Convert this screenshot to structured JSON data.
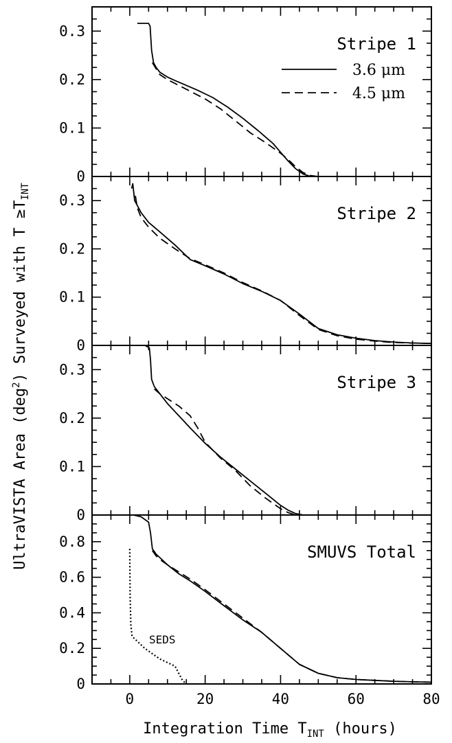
{
  "chart_data": [
    {
      "type": "line",
      "title": "Stripe 1",
      "xlim": [
        -10,
        80
      ],
      "ylim": [
        0,
        0.35
      ],
      "yticks": [
        0,
        0.1,
        0.2,
        0.3
      ],
      "yticklabels": [
        "0",
        "0.1",
        "0.2",
        "0.3"
      ],
      "legend": {
        "placement": "top-right",
        "entries": [
          {
            "label": "3.6 μm",
            "style": "solid"
          },
          {
            "label": "4.5 μm",
            "style": "dashed"
          }
        ]
      },
      "series": [
        {
          "name": "3.6 μm",
          "style": "solid",
          "x": [
            2,
            5,
            5.4,
            5.8,
            6.3,
            7,
            8,
            10,
            12,
            15,
            18,
            22,
            26,
            30,
            34,
            38,
            40,
            42,
            44,
            46,
            48
          ],
          "y": [
            0.316,
            0.316,
            0.31,
            0.26,
            0.235,
            0.225,
            0.215,
            0.205,
            0.198,
            0.188,
            0.178,
            0.163,
            0.143,
            0.12,
            0.095,
            0.068,
            0.05,
            0.032,
            0.016,
            0.005,
            0
          ]
        },
        {
          "name": "4.5 μm",
          "style": "dashed",
          "x": [
            6,
            7,
            8,
            10,
            13,
            16,
            20,
            24,
            28,
            32,
            36,
            40,
            42,
            44,
            46,
            48,
            50
          ],
          "y": [
            0.235,
            0.222,
            0.21,
            0.2,
            0.188,
            0.176,
            0.16,
            0.14,
            0.115,
            0.09,
            0.07,
            0.048,
            0.035,
            0.02,
            0.008,
            0.002,
            0
          ]
        }
      ]
    },
    {
      "type": "line",
      "title": "Stripe 2",
      "xlim": [
        -10,
        80
      ],
      "ylim": [
        0,
        0.35
      ],
      "yticks": [
        0,
        0.1,
        0.2,
        0.3
      ],
      "yticklabels": [
        "0",
        "0.1",
        "0.2",
        "0.3"
      ],
      "series": [
        {
          "name": "3.6 μm",
          "style": "solid",
          "x": [
            0.5,
            0.8,
            1.3,
            2,
            3,
            5,
            8,
            12,
            16,
            20,
            25,
            30,
            35,
            40,
            45,
            50,
            55,
            60,
            65,
            70,
            75,
            80
          ],
          "y": [
            0.325,
            0.335,
            0.3,
            0.29,
            0.275,
            0.255,
            0.235,
            0.208,
            0.178,
            0.165,
            0.148,
            0.128,
            0.112,
            0.093,
            0.065,
            0.035,
            0.022,
            0.015,
            0.01,
            0.007,
            0.005,
            0.004
          ]
        },
        {
          "name": "4.5 μm",
          "style": "dashed",
          "x": [
            1.5,
            2,
            3,
            5,
            8,
            12,
            16,
            20,
            25,
            30,
            35,
            40,
            45,
            50,
            55,
            60,
            65,
            70,
            75,
            80
          ],
          "y": [
            0.31,
            0.285,
            0.265,
            0.245,
            0.222,
            0.2,
            0.18,
            0.167,
            0.15,
            0.13,
            0.113,
            0.093,
            0.062,
            0.033,
            0.02,
            0.013,
            0.009,
            0.006,
            0.005,
            0.004
          ]
        }
      ]
    },
    {
      "type": "line",
      "title": "Stripe 3",
      "xlim": [
        -10,
        80
      ],
      "ylim": [
        0,
        0.35
      ],
      "yticks": [
        0,
        0.1,
        0.2,
        0.3
      ],
      "yticklabels": [
        "0",
        "0.1",
        "0.2",
        "0.3"
      ],
      "series": [
        {
          "name": "3.6 μm",
          "style": "solid",
          "x": [
            2,
            4,
            5.2,
            5.5,
            5.8,
            6.5,
            8,
            10,
            13,
            16,
            20,
            24,
            28,
            32,
            36,
            40,
            42,
            44,
            46
          ],
          "y": [
            0.35,
            0.35,
            0.345,
            0.32,
            0.28,
            0.265,
            0.25,
            0.23,
            0.205,
            0.18,
            0.148,
            0.12,
            0.095,
            0.07,
            0.045,
            0.02,
            0.01,
            0.003,
            0
          ]
        },
        {
          "name": "4.5 μm",
          "style": "dashed",
          "x": [
            6.5,
            8,
            10,
            13,
            16,
            18,
            20,
            24,
            28,
            32,
            36,
            40,
            42,
            44
          ],
          "y": [
            0.26,
            0.25,
            0.24,
            0.225,
            0.205,
            0.18,
            0.15,
            0.118,
            0.092,
            0.06,
            0.035,
            0.013,
            0.005,
            0
          ]
        }
      ]
    },
    {
      "type": "line",
      "title": "SMUVS Total",
      "xlim": [
        -10,
        80
      ],
      "ylim": [
        0,
        0.95
      ],
      "yticks": [
        0,
        0.2,
        0.4,
        0.6,
        0.8
      ],
      "yticklabels": [
        "0",
        "0.2",
        "0.4",
        "0.6",
        "0.8"
      ],
      "xticks": [
        0,
        20,
        40,
        60,
        80
      ],
      "xticklabels": [
        "0",
        "20",
        "40",
        "60",
        "80"
      ],
      "annotation": "SEDS",
      "series": [
        {
          "name": "3.6 μm",
          "style": "solid",
          "x": [
            1,
            3,
            5,
            5.5,
            6,
            7,
            8,
            10,
            13,
            16,
            20,
            25,
            30,
            35,
            40,
            45,
            50,
            55,
            60,
            65,
            70,
            75,
            80
          ],
          "y": [
            0.95,
            0.94,
            0.91,
            0.85,
            0.76,
            0.73,
            0.71,
            0.67,
            0.62,
            0.58,
            0.52,
            0.44,
            0.36,
            0.29,
            0.2,
            0.11,
            0.06,
            0.035,
            0.025,
            0.02,
            0.015,
            0.012,
            0.01
          ]
        },
        {
          "name": "4.5 μm",
          "style": "dashed",
          "x": [
            6,
            7,
            8,
            10,
            13,
            16,
            20,
            25,
            30,
            35,
            40,
            45,
            50,
            55,
            60,
            65,
            70,
            75,
            80
          ],
          "y": [
            0.75,
            0.72,
            0.7,
            0.67,
            0.63,
            0.59,
            0.53,
            0.45,
            0.37,
            0.29,
            0.2,
            0.11,
            0.06,
            0.035,
            0.025,
            0.02,
            0.015,
            0.012,
            0.01
          ]
        },
        {
          "name": "SEDS",
          "style": "dotted",
          "x": [
            0,
            0.1,
            0.3,
            0.6,
            1,
            2,
            4,
            6,
            8,
            10,
            12,
            13,
            14,
            15
          ],
          "y": [
            0.76,
            0.5,
            0.33,
            0.27,
            0.26,
            0.24,
            0.2,
            0.17,
            0.14,
            0.12,
            0.1,
            0.06,
            0.02,
            0
          ]
        }
      ]
    }
  ],
  "axes": {
    "xlabel_main": "Integration Time T",
    "xlabel_sub": "INT",
    "xlabel_tail": " (hours)",
    "ylabel_main": "UltraVISTA Area (deg",
    "ylabel_sup": "2",
    "ylabel_mid": ") Surveyed with T ≥T",
    "ylabel_sub": "INT"
  }
}
